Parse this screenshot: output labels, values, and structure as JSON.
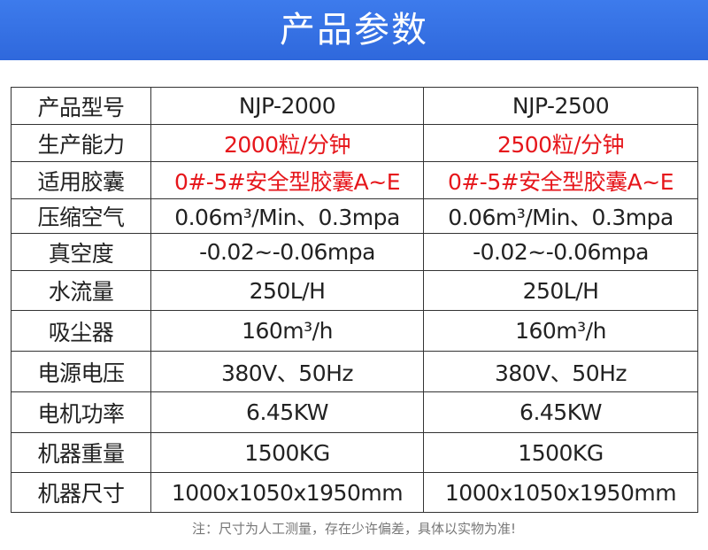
{
  "header": {
    "title": "产品参数"
  },
  "table": {
    "rows": [
      [
        "产品型号",
        "NJP-2000",
        "NJP-2500"
      ],
      [
        "生产能力",
        "2000粒/分钟",
        "2500粒/分钟"
      ],
      [
        "适用胶囊",
        "0#-5#安全型胶囊A~E",
        "0#-5#安全型胶囊A~E"
      ],
      [
        "压缩空气",
        "0.06m³/Min、0.3mpa",
        "0.06m³/Min、0.3mpa"
      ],
      [
        "真空度",
        "-0.02~-0.06mpa",
        "-0.02~-0.06mpa"
      ],
      [
        "水流量",
        "250L/H",
        "250L/H"
      ],
      [
        "吸尘器",
        "160m³/h",
        "160m³/h"
      ],
      [
        "电源电压",
        "380V、50Hz",
        "380V、50Hz"
      ],
      [
        "电机功率",
        "6.45KW",
        "6.45KW"
      ],
      [
        "机器重量",
        "1500KG",
        "1500KG"
      ],
      [
        "机器尺寸",
        "1000x1050x1950mm",
        "1000x1050x1950mm"
      ]
    ]
  },
  "footnote": "注：尺寸为人工测量，存在少许偏差，具体以实物为准!"
}
